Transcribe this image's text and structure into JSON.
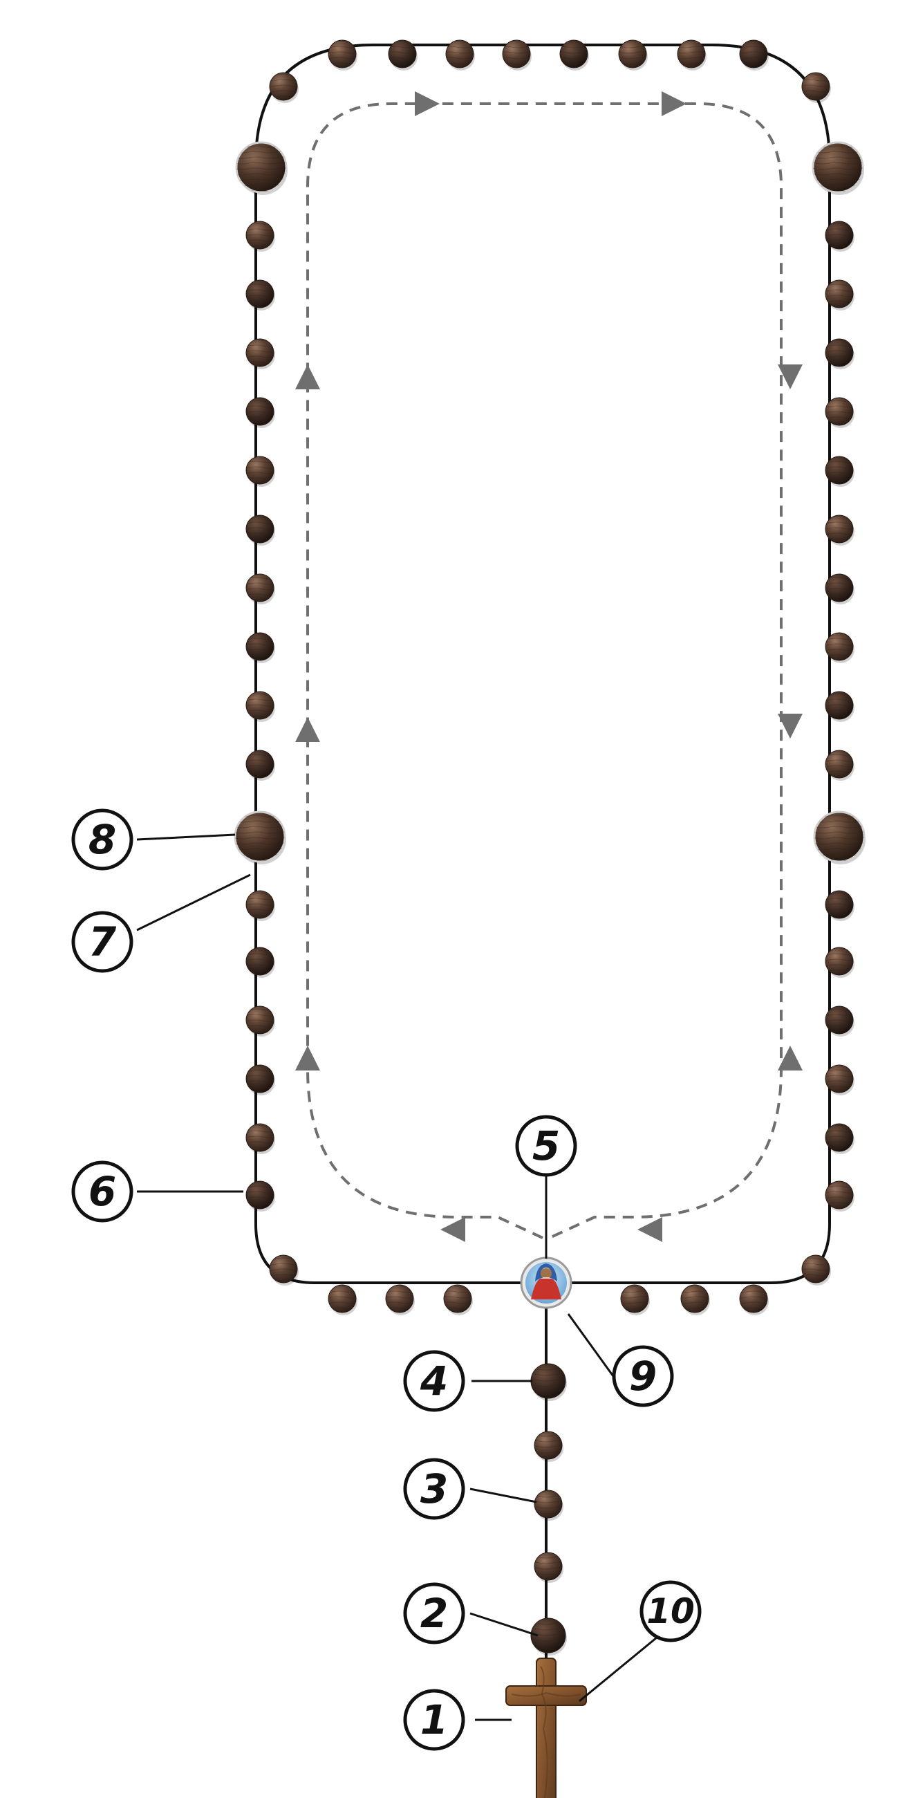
{
  "diagram": {
    "callouts": [
      {
        "id": "1",
        "label": "1",
        "icon": "crucifix-icon"
      },
      {
        "id": "2",
        "label": "2"
      },
      {
        "id": "3",
        "label": "3"
      },
      {
        "id": "4",
        "label": "4"
      },
      {
        "id": "5",
        "label": "5"
      },
      {
        "id": "6",
        "label": "6"
      },
      {
        "id": "7",
        "label": "7"
      },
      {
        "id": "8",
        "label": "8"
      },
      {
        "id": "9",
        "label": "9",
        "icon": "virgin-mary-medal-icon"
      },
      {
        "id": "10",
        "label": "10",
        "icon": "crucifix-icon"
      }
    ],
    "structure": {
      "decades": 5,
      "beads_per_decade": 10,
      "large_beads_in_loop": 4,
      "pendant_beads": 5,
      "direction_arrows": "counterclockwise-up-left-side"
    },
    "colors": {
      "bead_dark": "#3b2a22",
      "bead_mid": "#5a4032",
      "bead_light": "#7a5a48",
      "cord": "#111111",
      "arrow": "#6f6f6f",
      "cross_wood": "#8a5a32",
      "medal_blue": "#7fb7e0",
      "medal_red": "#c8342c"
    }
  }
}
